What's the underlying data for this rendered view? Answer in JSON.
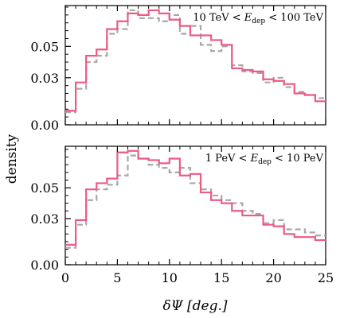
{
  "figure": {
    "shared_xlabel": "δΨ [deg.]",
    "shared_ylabel": "density"
  },
  "chart_data": [
    {
      "type": "line",
      "drawstyle": "steps",
      "annotation": "10 TeV < E_dep < 100 TeV",
      "xlabel": "",
      "ylabel": "density",
      "xlim": [
        0,
        25
      ],
      "ylim": [
        0,
        0.076
      ],
      "x_ticks": [
        0,
        5,
        10,
        15,
        20,
        25
      ],
      "y_ticks": [
        "0.00",
        "0.03",
        "0.05"
      ],
      "y_tick_values": [
        0.0,
        0.03,
        0.05
      ],
      "bin_edges": [
        0,
        1,
        2,
        3,
        4,
        5,
        6,
        7,
        8,
        9,
        10,
        11,
        12,
        13,
        14,
        15,
        16,
        17,
        18,
        19,
        20,
        21,
        22,
        23,
        24,
        25
      ],
      "series": [
        {
          "color": "#ee5a84",
          "linestyle": "solid",
          "values": [
            0.009,
            0.027,
            0.044,
            0.048,
            0.061,
            0.066,
            0.071,
            0.07,
            0.073,
            0.071,
            0.067,
            0.063,
            0.057,
            0.057,
            0.054,
            0.051,
            0.036,
            0.035,
            0.034,
            0.029,
            0.028,
            0.026,
            0.02,
            0.019,
            0.015
          ]
        },
        {
          "color": "#a8a8a8",
          "linestyle": "dashed",
          "values": [
            0.008,
            0.023,
            0.04,
            0.044,
            0.058,
            0.061,
            0.073,
            0.068,
            0.068,
            0.066,
            0.07,
            0.058,
            0.063,
            0.051,
            0.047,
            0.05,
            0.038,
            0.034,
            0.033,
            0.027,
            0.03,
            0.024,
            0.021,
            0.019,
            0.017
          ]
        }
      ]
    },
    {
      "type": "line",
      "drawstyle": "steps",
      "annotation": "1 PeV < E_dep < 10 PeV",
      "xlabel": "δΨ [deg.]",
      "ylabel": "density",
      "xlim": [
        0,
        25
      ],
      "ylim": [
        0,
        0.077
      ],
      "x_ticks": [
        0,
        5,
        10,
        15,
        20,
        25
      ],
      "y_ticks": [
        "0.00",
        "0.03",
        "0.05"
      ],
      "y_tick_values": [
        0.0,
        0.03,
        0.05
      ],
      "bin_edges": [
        0,
        1,
        2,
        3,
        4,
        5,
        6,
        7,
        8,
        9,
        10,
        11,
        12,
        13,
        14,
        15,
        16,
        17,
        18,
        19,
        20,
        21,
        22,
        23,
        24,
        25
      ],
      "series": [
        {
          "color": "#ee5a84",
          "linestyle": "solid",
          "values": [
            0.013,
            0.029,
            0.049,
            0.053,
            0.056,
            0.073,
            0.074,
            0.069,
            0.068,
            0.066,
            0.069,
            0.058,
            0.059,
            0.047,
            0.042,
            0.04,
            0.035,
            0.032,
            0.032,
            0.026,
            0.025,
            0.02,
            0.018,
            0.018,
            0.016
          ]
        },
        {
          "color": "#a8a8a8",
          "linestyle": "dashed",
          "values": [
            0.011,
            0.026,
            0.042,
            0.049,
            0.052,
            0.058,
            0.071,
            0.069,
            0.065,
            0.063,
            0.06,
            0.063,
            0.053,
            0.049,
            0.045,
            0.042,
            0.04,
            0.035,
            0.033,
            0.027,
            0.029,
            0.023,
            0.023,
            0.021,
            0.019
          ]
        }
      ]
    }
  ]
}
